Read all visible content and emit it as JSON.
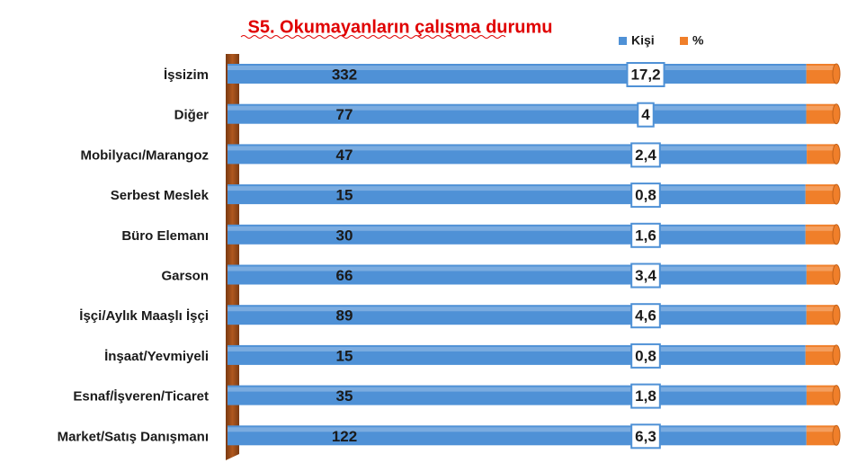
{
  "chart_data": {
    "type": "bar",
    "orientation": "horizontal",
    "stacking": "percent",
    "title": "S5. Okumayanların çalışma durumu",
    "categories": [
      "İşsizim",
      "Diğer",
      "Mobilyacı/Marangoz",
      "Serbest Meslek",
      "Büro Elemanı",
      "Garson",
      "İşçi/Aylık Maaşlı İşçi",
      "İnşaat/Yevmiyeli",
      "Esnaf/İşveren/Ticaret",
      "Market/Satış Danışmanı"
    ],
    "series": [
      {
        "name": "Kişi",
        "color": "#4f91d6",
        "values": [
          332,
          77,
          47,
          15,
          30,
          66,
          89,
          15,
          35,
          122
        ]
      },
      {
        "name": "%",
        "color": "#f07f2a",
        "values": [
          17.2,
          4,
          2.4,
          0.8,
          1.6,
          3.4,
          4.6,
          0.8,
          1.8,
          6.3
        ],
        "value_labels": [
          "17,2",
          "4",
          "2,4",
          "0,8",
          "1,6",
          "3,4",
          "4,6",
          "0,8",
          "1,8",
          "6,3"
        ]
      }
    ],
    "legend": "top-right"
  }
}
